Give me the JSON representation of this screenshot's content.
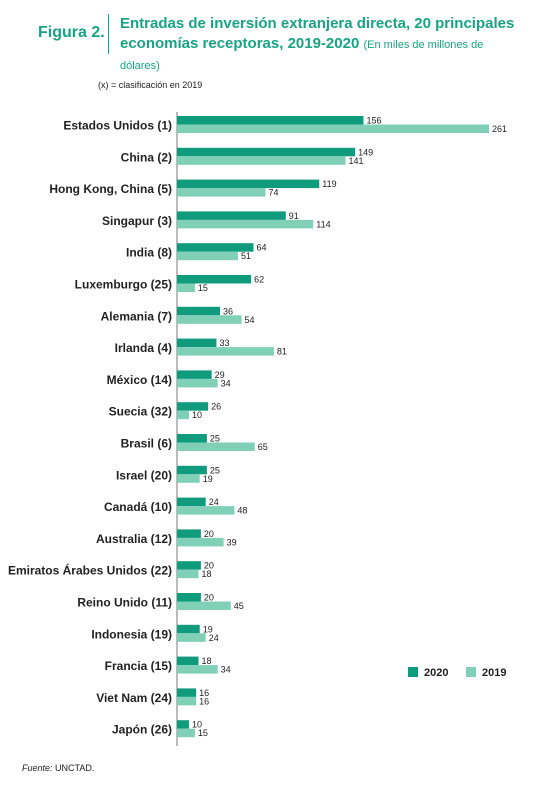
{
  "figure_label": "Figura 2.",
  "title": "Entradas de inversión extranjera directa, 20 principales economías receptoras, 2019-2020",
  "units": "(En miles de millones de dólares)",
  "note": "(x) = clasificación en 2019",
  "source_prefix": "Fuente:",
  "source_text": "UNCTAD.",
  "colors": {
    "2020": "#109b7d",
    "2019": "#7fd0b7",
    "title": "#19a384"
  },
  "chart_data": {
    "type": "bar",
    "orientation": "horizontal",
    "categories": [
      "Estados Unidos (1)",
      "China (2)",
      "Hong Kong, China (5)",
      "Singapur (3)",
      "India (8)",
      "Luxemburgo (25)",
      "Alemania (7)",
      "Irlanda (4)",
      "México (14)",
      "Suecia (32)",
      "Brasil (6)",
      "Israel (20)",
      "Canadá (10)",
      "Australia (12)",
      "Emiratos Árabes Unidos (22)",
      "Reino Unido (11)",
      "Indonesia (19)",
      "Francia (15)",
      "Viet Nam (24)",
      "Japón (26)"
    ],
    "series": [
      {
        "name": "2020",
        "values": [
          156,
          149,
          119,
          91,
          64,
          62,
          36,
          33,
          29,
          26,
          25,
          25,
          24,
          20,
          20,
          20,
          19,
          18,
          16,
          10
        ]
      },
      {
        "name": "2019",
        "values": [
          261,
          141,
          74,
          114,
          51,
          15,
          54,
          81,
          34,
          10,
          65,
          19,
          48,
          39,
          18,
          45,
          24,
          34,
          16,
          15
        ]
      }
    ],
    "xlim": [
      0,
      261
    ],
    "legend_position": "bottom-right",
    "grid": false
  }
}
